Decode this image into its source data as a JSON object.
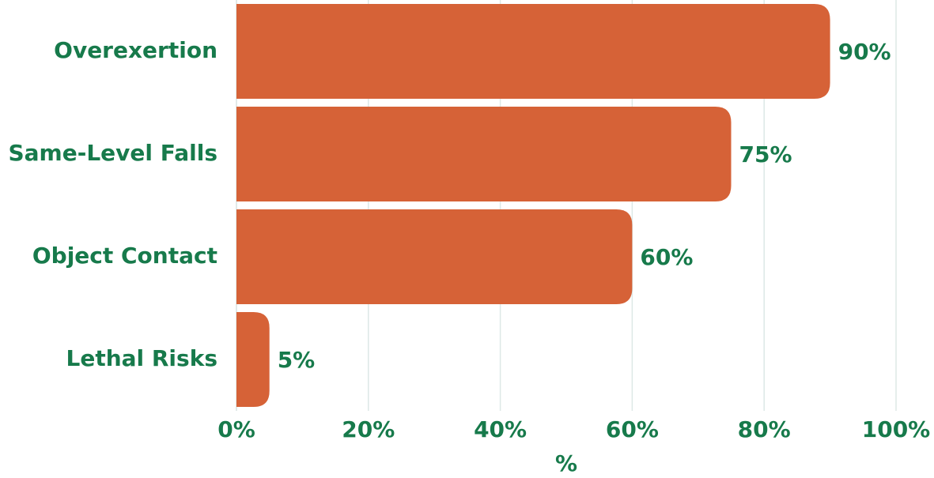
{
  "chart_data": {
    "type": "bar",
    "orientation": "horizontal",
    "categories": [
      "Overexertion",
      "Same-Level Falls",
      "Object Contact",
      "Lethal Risks"
    ],
    "values": [
      90,
      75,
      60,
      5
    ],
    "value_labels": [
      "90%",
      "75%",
      "60%",
      "5%"
    ],
    "color": "#d66237",
    "xlabel": "%",
    "xlim": [
      0,
      100
    ],
    "xticks": [
      {
        "value": 0,
        "label": "0%"
      },
      {
        "value": 20,
        "label": "20%"
      },
      {
        "value": 40,
        "label": "40%"
      },
      {
        "value": 60,
        "label": "60%"
      },
      {
        "value": 80,
        "label": "80%"
      },
      {
        "value": 100,
        "label": "100%"
      }
    ],
    "grid": true
  }
}
